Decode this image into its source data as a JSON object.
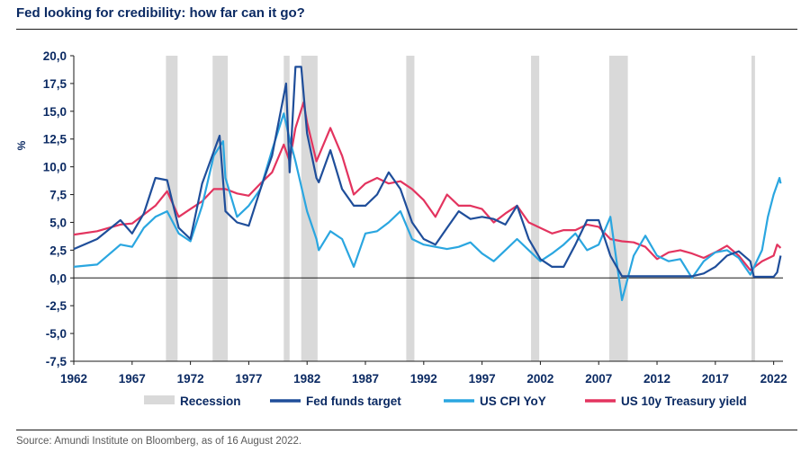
{
  "header": {
    "title": "Fed looking for credibility: how far can it go?"
  },
  "footer": {
    "source": "Source: Amundi Institute on Bloomberg, as of 16 August 2022."
  },
  "colors": {
    "recession": "#d9d9d9",
    "fed_funds": "#1f4e9a",
    "cpi": "#2aa6e0",
    "treasury": "#e3345f",
    "axis": "#0b2a63"
  },
  "chart_data": {
    "type": "line",
    "title": "Fed looking for credibility: how far can it go?",
    "xlabel": "",
    "ylabel": "%",
    "xlim": [
      1962,
      2022.8
    ],
    "ylim": [
      -7.5,
      20
    ],
    "x_ticks": [
      "1962",
      "1967",
      "1972",
      "1977",
      "1982",
      "1987",
      "1992",
      "1997",
      "2002",
      "2007",
      "2012",
      "2017",
      "2022"
    ],
    "y_ticks": [
      "20,0",
      "17,5",
      "15,0",
      "12,5",
      "10,0",
      "7,5",
      "5,0",
      "2,5",
      "0,0",
      "-2,5",
      "-5,0",
      "-7,5"
    ],
    "grid": false,
    "legend_position": "bottom",
    "recessions": [
      [
        1969.9,
        1970.9
      ],
      [
        1973.9,
        1975.2
      ],
      [
        1980.0,
        1980.5
      ],
      [
        1981.5,
        1982.9
      ],
      [
        1990.5,
        1991.2
      ],
      [
        2001.2,
        2001.9
      ],
      [
        2007.9,
        2009.5
      ],
      [
        2020.1,
        2020.4
      ]
    ],
    "series": [
      {
        "name": "Fed funds target",
        "points": [
          [
            1962,
            2.6
          ],
          [
            1964,
            3.5
          ],
          [
            1966,
            5.2
          ],
          [
            1967,
            4.0
          ],
          [
            1968,
            5.8
          ],
          [
            1969,
            9.0
          ],
          [
            1970,
            8.8
          ],
          [
            1971,
            4.5
          ],
          [
            1972,
            3.5
          ],
          [
            1973,
            8.5
          ],
          [
            1973.7,
            10.5
          ],
          [
            1974.5,
            12.8
          ],
          [
            1975,
            6.0
          ],
          [
            1976,
            5.0
          ],
          [
            1977,
            4.7
          ],
          [
            1978,
            8.0
          ],
          [
            1979,
            11.0
          ],
          [
            1980.2,
            17.5
          ],
          [
            1980.5,
            9.5
          ],
          [
            1981,
            19.0
          ],
          [
            1981.5,
            19.0
          ],
          [
            1982,
            13.0
          ],
          [
            1982.8,
            9.0
          ],
          [
            1983,
            8.6
          ],
          [
            1984,
            11.5
          ],
          [
            1985,
            8.0
          ],
          [
            1986,
            6.5
          ],
          [
            1987,
            6.5
          ],
          [
            1988,
            7.5
          ],
          [
            1989,
            9.5
          ],
          [
            1990,
            8.0
          ],
          [
            1991,
            5.0
          ],
          [
            1992,
            3.5
          ],
          [
            1993,
            3.0
          ],
          [
            1994,
            4.5
          ],
          [
            1995,
            6.0
          ],
          [
            1996,
            5.3
          ],
          [
            1997,
            5.5
          ],
          [
            1998,
            5.3
          ],
          [
            1999,
            4.8
          ],
          [
            2000,
            6.5
          ],
          [
            2001,
            3.5
          ],
          [
            2002,
            1.7
          ],
          [
            2003,
            1.0
          ],
          [
            2004,
            1.0
          ],
          [
            2005,
            3.0
          ],
          [
            2006,
            5.2
          ],
          [
            2007,
            5.2
          ],
          [
            2008,
            2.0
          ],
          [
            2009,
            0.15
          ],
          [
            2012,
            0.15
          ],
          [
            2015,
            0.15
          ],
          [
            2016,
            0.4
          ],
          [
            2017,
            1.0
          ],
          [
            2018,
            2.0
          ],
          [
            2019,
            2.4
          ],
          [
            2020,
            1.5
          ],
          [
            2020.3,
            0.1
          ],
          [
            2022,
            0.1
          ],
          [
            2022.3,
            0.5
          ],
          [
            2022.6,
            2.0
          ]
        ]
      },
      {
        "name": "US CPI YoY",
        "points": [
          [
            1962,
            1.0
          ],
          [
            1964,
            1.2
          ],
          [
            1966,
            3.0
          ],
          [
            1967,
            2.8
          ],
          [
            1968,
            4.5
          ],
          [
            1969,
            5.5
          ],
          [
            1970,
            6.0
          ],
          [
            1971,
            4.0
          ],
          [
            1972,
            3.3
          ],
          [
            1973,
            6.5
          ],
          [
            1974,
            11.0
          ],
          [
            1974.8,
            12.3
          ],
          [
            1975,
            9.0
          ],
          [
            1976,
            5.5
          ],
          [
            1977,
            6.5
          ],
          [
            1978,
            8.0
          ],
          [
            1979,
            11.5
          ],
          [
            1980,
            14.8
          ],
          [
            1980.5,
            12.5
          ],
          [
            1981,
            10.5
          ],
          [
            1982,
            6.0
          ],
          [
            1982.8,
            3.5
          ],
          [
            1983,
            2.5
          ],
          [
            1984,
            4.2
          ],
          [
            1985,
            3.5
          ],
          [
            1986,
            1.0
          ],
          [
            1987,
            4.0
          ],
          [
            1988,
            4.2
          ],
          [
            1989,
            5.0
          ],
          [
            1990,
            6.0
          ],
          [
            1991,
            3.5
          ],
          [
            1992,
            3.0
          ],
          [
            1993,
            2.8
          ],
          [
            1994,
            2.6
          ],
          [
            1995,
            2.8
          ],
          [
            1996,
            3.2
          ],
          [
            1997,
            2.2
          ],
          [
            1998,
            1.5
          ],
          [
            1999,
            2.5
          ],
          [
            2000,
            3.5
          ],
          [
            2001,
            2.5
          ],
          [
            2002,
            1.5
          ],
          [
            2003,
            2.2
          ],
          [
            2004,
            3.0
          ],
          [
            2005,
            4.0
          ],
          [
            2006,
            2.5
          ],
          [
            2007,
            3.0
          ],
          [
            2008,
            5.5
          ],
          [
            2009,
            -2.0
          ],
          [
            2009.5,
            0.0
          ],
          [
            2010,
            2.0
          ],
          [
            2011,
            3.8
          ],
          [
            2012,
            2.0
          ],
          [
            2013,
            1.5
          ],
          [
            2014,
            1.7
          ],
          [
            2015,
            0.0
          ],
          [
            2016,
            1.5
          ],
          [
            2017,
            2.3
          ],
          [
            2018,
            2.5
          ],
          [
            2019,
            1.8
          ],
          [
            2020,
            0.3
          ],
          [
            2021,
            2.5
          ],
          [
            2021.5,
            5.5
          ],
          [
            2022,
            7.5
          ],
          [
            2022.5,
            9.0
          ],
          [
            2022.6,
            8.5
          ]
        ]
      },
      {
        "name": "US 10y Treasury yield",
        "points": [
          [
            1962,
            3.9
          ],
          [
            1964,
            4.2
          ],
          [
            1966,
            4.8
          ],
          [
            1967,
            4.9
          ],
          [
            1968,
            5.7
          ],
          [
            1969,
            6.5
          ],
          [
            1970,
            7.8
          ],
          [
            1971,
            5.5
          ],
          [
            1972,
            6.2
          ],
          [
            1973,
            6.9
          ],
          [
            1974,
            8.0
          ],
          [
            1975,
            8.0
          ],
          [
            1976,
            7.6
          ],
          [
            1977,
            7.4
          ],
          [
            1978,
            8.5
          ],
          [
            1979,
            9.5
          ],
          [
            1980,
            12.0
          ],
          [
            1980.5,
            10.5
          ],
          [
            1981,
            13.5
          ],
          [
            1981.7,
            15.8
          ],
          [
            1982,
            14.0
          ],
          [
            1982.8,
            10.5
          ],
          [
            1983,
            11.0
          ],
          [
            1984,
            13.5
          ],
          [
            1985,
            11.0
          ],
          [
            1986,
            7.5
          ],
          [
            1987,
            8.5
          ],
          [
            1988,
            9.0
          ],
          [
            1989,
            8.5
          ],
          [
            1990,
            8.7
          ],
          [
            1991,
            8.0
          ],
          [
            1992,
            7.0
          ],
          [
            1993,
            5.5
          ],
          [
            1994,
            7.5
          ],
          [
            1995,
            6.5
          ],
          [
            1996,
            6.5
          ],
          [
            1997,
            6.2
          ],
          [
            1998,
            5.0
          ],
          [
            1999,
            5.8
          ],
          [
            2000,
            6.5
          ],
          [
            2001,
            5.0
          ],
          [
            2002,
            4.5
          ],
          [
            2003,
            4.0
          ],
          [
            2004,
            4.3
          ],
          [
            2005,
            4.3
          ],
          [
            2006,
            4.8
          ],
          [
            2007,
            4.6
          ],
          [
            2008,
            3.5
          ],
          [
            2009,
            3.3
          ],
          [
            2010,
            3.2
          ],
          [
            2011,
            2.8
          ],
          [
            2012,
            1.7
          ],
          [
            2013,
            2.3
          ],
          [
            2014,
            2.5
          ],
          [
            2015,
            2.2
          ],
          [
            2016,
            1.8
          ],
          [
            2017,
            2.3
          ],
          [
            2018,
            2.9
          ],
          [
            2019,
            2.0
          ],
          [
            2020,
            0.7
          ],
          [
            2021,
            1.5
          ],
          [
            2022,
            2.0
          ],
          [
            2022.3,
            3.0
          ],
          [
            2022.6,
            2.7
          ]
        ]
      }
    ],
    "legend": [
      "Recession",
      "Fed funds target",
      "US CPI YoY",
      "US 10y Treasury yield"
    ]
  }
}
